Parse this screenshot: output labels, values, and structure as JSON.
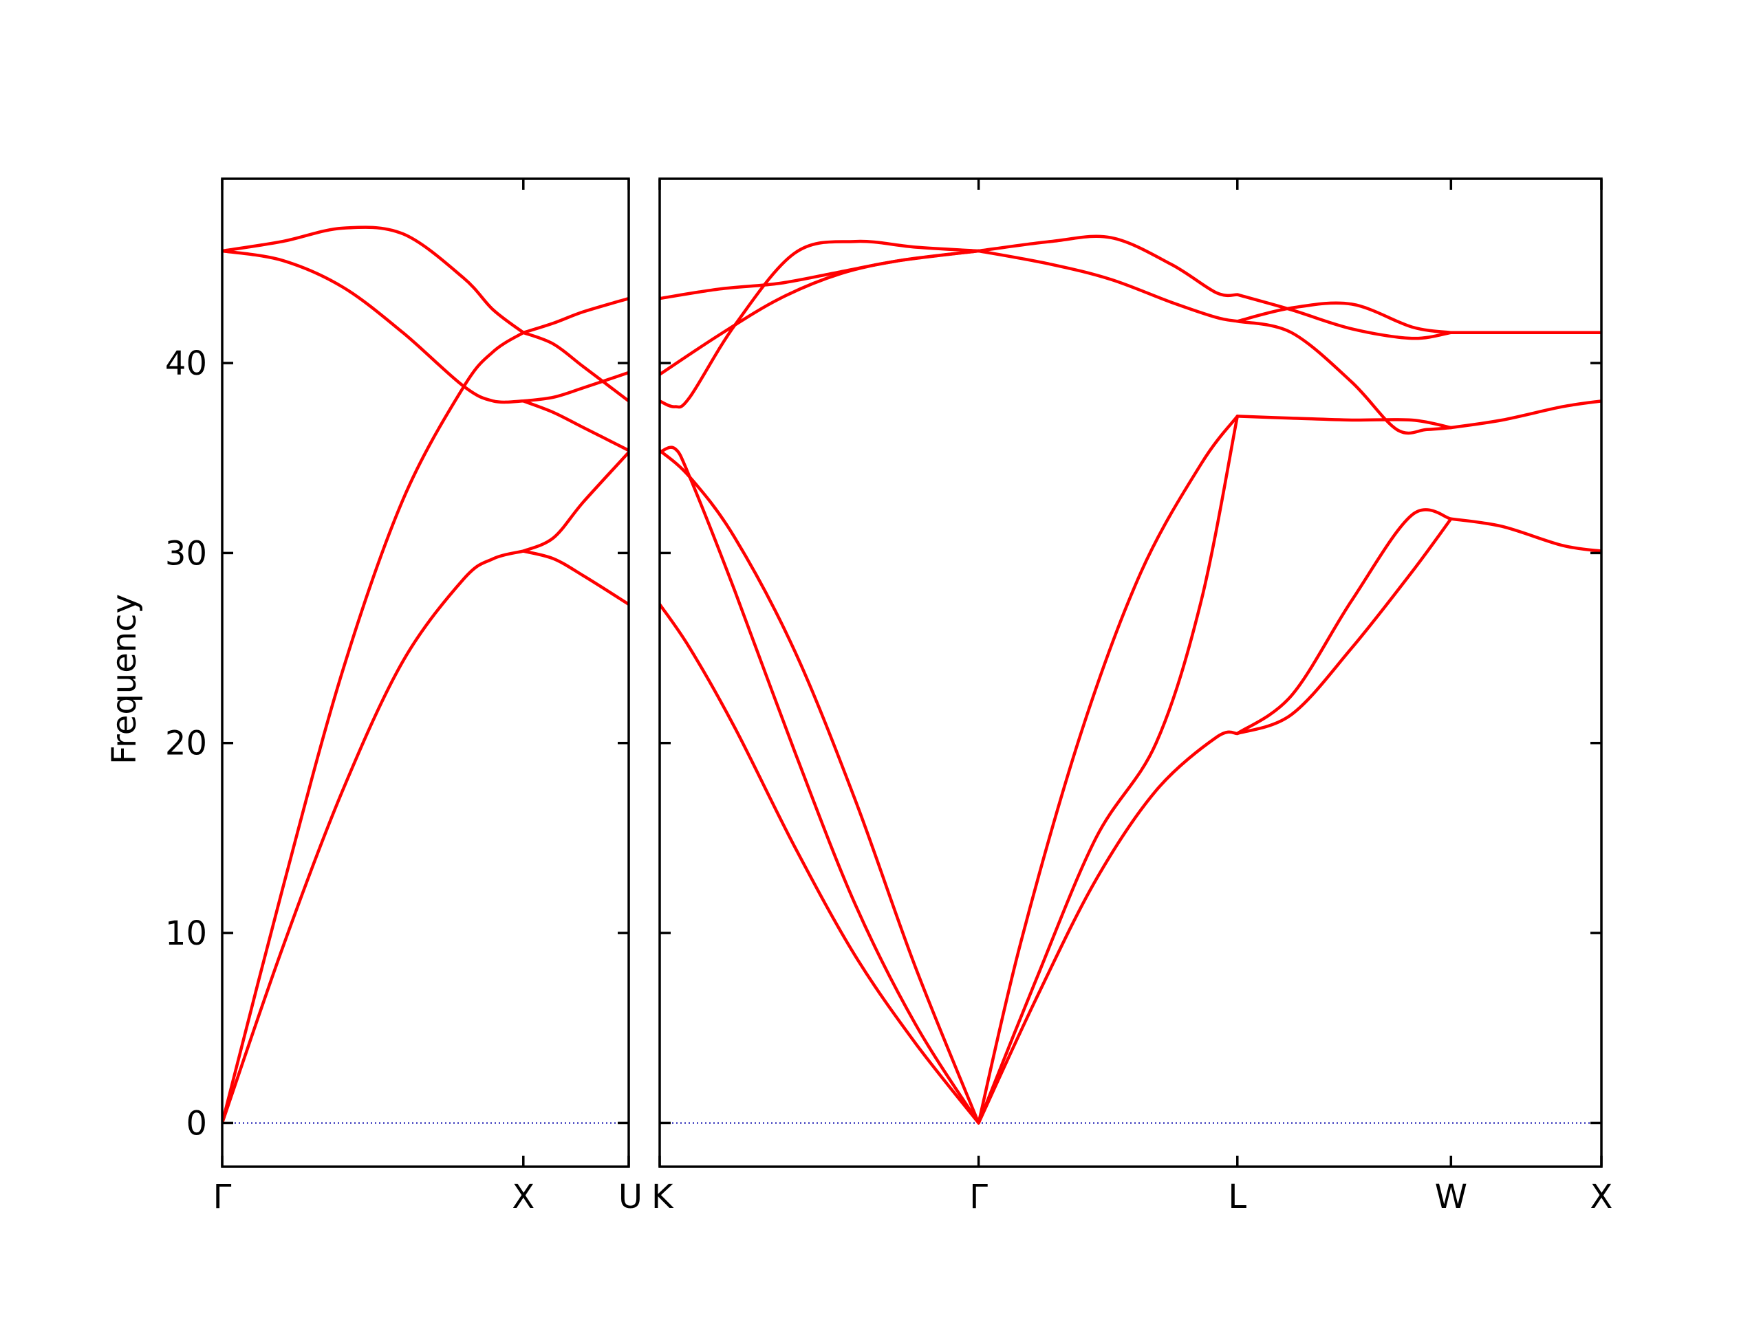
{
  "chart_data": {
    "type": "line",
    "title": "",
    "ylabel": "Frequency",
    "xlabel": "",
    "ylim": [
      -2.3,
      49.7
    ],
    "yticks": [
      0,
      10,
      20,
      30,
      40
    ],
    "grid": false,
    "legend": "none",
    "colors": {
      "band": "#ff0000",
      "zero_line": "#0000aa"
    },
    "panels": [
      {
        "name": "left",
        "xlim": [
          0,
          1.35
        ],
        "ticks": [
          {
            "x": 0,
            "label": "Γ"
          },
          {
            "x": 1.0,
            "label": "X"
          },
          {
            "x": 1.35,
            "label": "U"
          }
        ],
        "series": [
          {
            "x": [
              0,
              0.2,
              0.4,
              0.6,
              0.8,
              0.9,
              1.0
            ],
            "values": [
              0,
              9.2,
              17.5,
              24.3,
              28.6,
              29.7,
              30.1
            ]
          },
          {
            "x": [
              0,
              0.2,
              0.4,
              0.6,
              0.8,
              0.9,
              1.0
            ],
            "values": [
              0,
              12.3,
              23.8,
              32.8,
              38.7,
              40.6,
              41.6
            ]
          },
          {
            "x": [
              0,
              0.2,
              0.4,
              0.6,
              0.8,
              0.9,
              1.0
            ],
            "values": [
              45.9,
              45.4,
              44.0,
              41.6,
              38.8,
              38.0,
              38.0
            ]
          },
          {
            "x": [
              0,
              0.2,
              0.4,
              0.6,
              0.8,
              0.9,
              1.0
            ],
            "values": [
              45.9,
              46.4,
              47.1,
              46.8,
              44.5,
              42.8,
              41.6
            ]
          },
          {
            "x": [
              1.0,
              1.1,
              1.2,
              1.35
            ],
            "values": [
              30.1,
              30.8,
              32.7,
              35.3
            ]
          },
          {
            "x": [
              1.0,
              1.1,
              1.2,
              1.35
            ],
            "values": [
              30.1,
              29.7,
              28.8,
              27.3
            ]
          },
          {
            "x": [
              1.0,
              1.1,
              1.2,
              1.35
            ],
            "values": [
              38.0,
              37.4,
              36.6,
              35.4
            ]
          },
          {
            "x": [
              1.0,
              1.1,
              1.2,
              1.35
            ],
            "values": [
              38.0,
              38.2,
              38.7,
              39.5
            ]
          },
          {
            "x": [
              1.0,
              1.1,
              1.2,
              1.35
            ],
            "values": [
              41.6,
              41.0,
              39.8,
              38.0
            ]
          },
          {
            "x": [
              1.0,
              1.1,
              1.2,
              1.35
            ],
            "values": [
              41.6,
              42.1,
              42.7,
              43.4
            ]
          }
        ]
      },
      {
        "name": "right",
        "xlim": [
          0,
          3.13
        ],
        "ticks": [
          {
            "x": 0,
            "label": "K"
          },
          {
            "x": 1.06,
            "label": "Γ"
          },
          {
            "x": 1.92,
            "label": "L"
          },
          {
            "x": 2.63,
            "label": "W"
          },
          {
            "x": 3.13,
            "label": "X"
          }
        ],
        "series": [
          {
            "x": [
              0,
              0.1,
              0.25,
              0.45,
              0.65,
              0.85,
              1.06
            ],
            "values": [
              27.3,
              25.0,
              20.8,
              14.5,
              8.8,
              4.2,
              0
            ]
          },
          {
            "x": [
              0,
              0.05,
              0.1,
              0.25,
              0.45,
              0.65,
              0.85,
              1.06
            ],
            "values": [
              35.3,
              35.5,
              34.0,
              28.0,
              19.5,
              11.5,
              5.2,
              0
            ]
          },
          {
            "x": [
              0,
              0.1,
              0.25,
              0.45,
              0.65,
              0.85,
              1.06
            ],
            "values": [
              35.4,
              34.0,
              30.8,
              24.8,
              17.0,
              8.2,
              0
            ]
          },
          {
            "x": [
              1.06,
              1.25,
              1.45,
              1.65,
              1.8,
              1.92
            ],
            "values": [
              0,
              7.5,
              15.0,
              20.0,
              27.5,
              37.2
            ]
          },
          {
            "x": [
              1.06,
              1.25,
              1.45,
              1.65,
              1.85,
              1.92
            ],
            "values": [
              0,
              6.5,
              12.8,
              17.5,
              20.3,
              20.5
            ]
          },
          {
            "x": [
              1.06,
              1.2,
              1.4,
              1.6,
              1.8,
              1.92
            ],
            "values": [
              0,
              9.5,
              20.5,
              29.0,
              34.7,
              37.2
            ]
          },
          {
            "x": [
              1.92,
              2.1,
              2.3,
              2.5,
              2.63
            ],
            "values": [
              37.2,
              37.1,
              37.0,
              37.0,
              36.6
            ]
          },
          {
            "x": [
              1.92,
              2.1,
              2.3,
              2.5,
              2.63
            ],
            "values": [
              20.5,
              22.5,
              27.5,
              32.0,
              31.8
            ]
          },
          {
            "x": [
              1.92,
              2.1,
              2.3,
              2.5,
              2.63
            ],
            "values": [
              20.5,
              21.5,
              25.0,
              29.0,
              31.8
            ]
          },
          {
            "x": [
              1.92,
              2.1,
              2.3,
              2.45,
              2.55,
              2.63
            ],
            "values": [
              42.2,
              41.6,
              39.0,
              36.5,
              36.5,
              36.6
            ]
          },
          {
            "x": [
              1.92,
              2.1,
              2.3,
              2.5,
              2.63
            ],
            "values": [
              42.2,
              42.9,
              43.1,
              41.9,
              41.6
            ]
          },
          {
            "x": [
              1.92,
              2.1,
              2.3,
              2.5,
              2.63
            ],
            "values": [
              43.6,
              42.8,
              41.8,
              41.3,
              41.6
            ]
          },
          {
            "x": [
              2.63,
              2.8,
              3.0,
              3.13
            ],
            "values": [
              41.6,
              41.6,
              41.6,
              41.6
            ]
          },
          {
            "x": [
              2.63,
              2.8,
              3.0,
              3.13
            ],
            "values": [
              36.6,
              37.0,
              37.7,
              38.0
            ]
          },
          {
            "x": [
              2.63,
              2.8,
              3.0,
              3.13
            ],
            "values": [
              31.8,
              31.4,
              30.4,
              30.1
            ]
          },
          {
            "x": [
              0,
              0.2,
              0.4,
              0.6,
              0.8,
              1.06
            ],
            "values": [
              39.4,
              41.5,
              43.4,
              44.7,
              45.4,
              45.9
            ]
          },
          {
            "x": [
              0,
              0.2,
              0.4,
              0.6,
              0.8,
              1.06
            ],
            "values": [
              43.4,
              43.9,
              44.2,
              44.8,
              45.4,
              45.9
            ]
          },
          {
            "x": [
              0,
              0.05,
              0.1,
              0.25,
              0.45,
              0.65,
              0.85,
              1.06
            ],
            "values": [
              38.0,
              37.7,
              38.2,
              42.0,
              45.8,
              46.4,
              46.1,
              45.9
            ]
          },
          {
            "x": [
              1.06,
              1.3,
              1.5,
              1.7,
              1.85,
              1.92
            ],
            "values": [
              45.9,
              46.4,
              46.6,
              45.2,
              43.7,
              43.6
            ]
          },
          {
            "x": [
              1.06,
              1.3,
              1.5,
              1.7,
              1.85,
              1.92
            ],
            "values": [
              45.9,
              45.2,
              44.4,
              43.2,
              42.4,
              42.2
            ]
          }
        ]
      }
    ]
  }
}
